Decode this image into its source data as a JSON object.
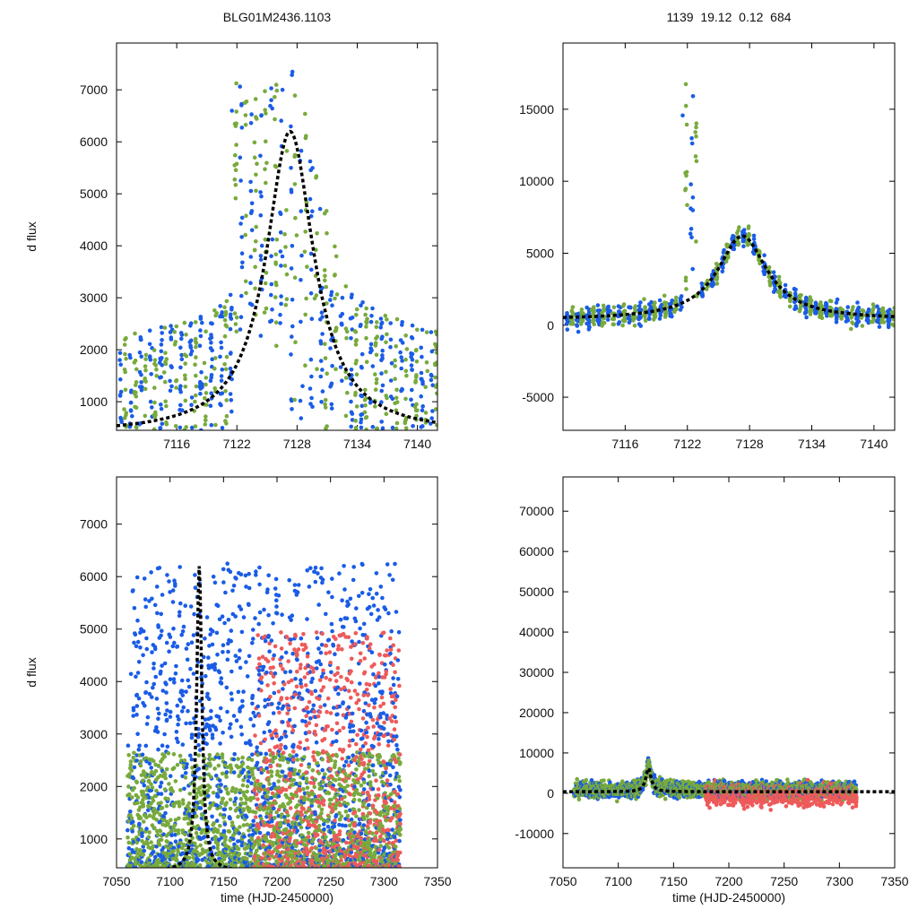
{
  "figure": {
    "title_left": "BLG01M2436.1103",
    "title_right": "1139  19.12  0.12  684"
  },
  "colors": {
    "blue": "#1a5ce6",
    "green": "#78aa3c",
    "red": "#ee5a5a",
    "model": "#000000"
  },
  "model": {
    "t0": 7127.3,
    "peak": 6200,
    "base": 380,
    "tE": 2.9
  },
  "chart_data": [
    {
      "type": "scatter",
      "panel": "top-left",
      "title": "BLG01M2436.1103",
      "xlabel": "",
      "ylabel": "d flux",
      "xlim": [
        7110,
        7142
      ],
      "ylim": [
        450,
        7900
      ],
      "xticks": [
        7116,
        7122,
        7128,
        7134,
        7140
      ],
      "yticks": [
        1000,
        2000,
        3000,
        4000,
        5000,
        6000,
        7000
      ],
      "series": [
        "blue",
        "green"
      ],
      "seed": 11
    },
    {
      "type": "scatter",
      "panel": "top-right",
      "title": "1139  19.12  0.12  684",
      "xlabel": "",
      "ylabel": "",
      "xlim": [
        7110,
        7142
      ],
      "ylim": [
        -7300,
        19600
      ],
      "xticks": [
        7116,
        7122,
        7128,
        7134,
        7140
      ],
      "yticks": [
        -5000,
        0,
        5000,
        10000,
        15000
      ],
      "series": [
        "blue",
        "green"
      ],
      "seed": 23
    },
    {
      "type": "scatter",
      "panel": "bottom-left",
      "xlabel": "time (HJD-2450000)",
      "ylabel": "d flux",
      "xlim": [
        7050,
        7350
      ],
      "ylim": [
        450,
        7900
      ],
      "xticks": [
        7050,
        7100,
        7150,
        7200,
        7250,
        7300,
        7350
      ],
      "yticks": [
        1000,
        2000,
        3000,
        4000,
        5000,
        6000,
        7000
      ],
      "series": [
        "blue",
        "green",
        "red"
      ],
      "seed": 37
    },
    {
      "type": "scatter",
      "panel": "bottom-right",
      "xlabel": "time (HJD-2450000)",
      "ylabel": "",
      "xlim": [
        7050,
        7350
      ],
      "ylim": [
        -18500,
        78500
      ],
      "xticks": [
        7050,
        7100,
        7150,
        7200,
        7250,
        7300,
        7350
      ],
      "yticks": [
        -10000,
        0,
        10000,
        20000,
        30000,
        40000,
        50000,
        60000,
        70000
      ],
      "series": [
        "blue",
        "green",
        "red"
      ],
      "seed": 53
    }
  ]
}
